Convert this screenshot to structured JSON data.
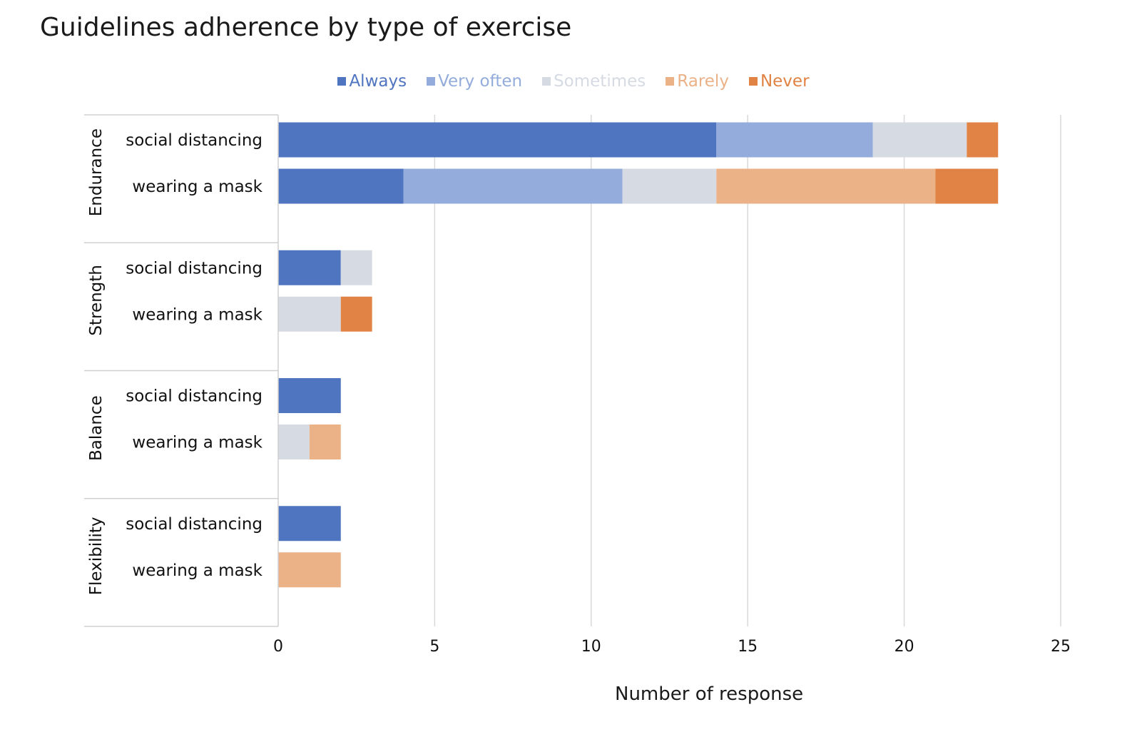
{
  "chart_data": {
    "type": "bar",
    "orientation": "horizontal",
    "stacked": true,
    "title": "Guidelines adherence by type of exercise",
    "xlabel": "Number of response",
    "ylabel": "",
    "xlim": [
      0,
      25
    ],
    "x_ticks": [
      0,
      5,
      10,
      15,
      20,
      25
    ],
    "grid": true,
    "legend_position": "top",
    "groups": [
      "Endurance",
      "Strength",
      "Balance",
      "Flexibility"
    ],
    "categories": [
      "social distancing",
      "wearing a mask"
    ],
    "series": [
      {
        "name": "Always",
        "color": "#4f74c0",
        "values": [
          [
            14,
            4
          ],
          [
            2,
            0
          ],
          [
            2,
            0
          ],
          [
            2,
            0
          ]
        ]
      },
      {
        "name": "Very often",
        "color": "#94acdb",
        "values": [
          [
            5,
            7
          ],
          [
            0,
            0
          ],
          [
            0,
            0
          ],
          [
            0,
            0
          ]
        ]
      },
      {
        "name": "Sometimes",
        "color": "#d6dae3",
        "values": [
          [
            3,
            3
          ],
          [
            1,
            2
          ],
          [
            0,
            1
          ],
          [
            0,
            0
          ]
        ]
      },
      {
        "name": "Rarely",
        "color": "#ebb187",
        "values": [
          [
            0,
            7
          ],
          [
            0,
            0
          ],
          [
            0,
            1
          ],
          [
            0,
            2
          ]
        ]
      },
      {
        "name": "Never",
        "color": "#e08344",
        "values": [
          [
            1,
            2
          ],
          [
            0,
            1
          ],
          [
            0,
            0
          ],
          [
            0,
            0
          ]
        ]
      }
    ]
  }
}
